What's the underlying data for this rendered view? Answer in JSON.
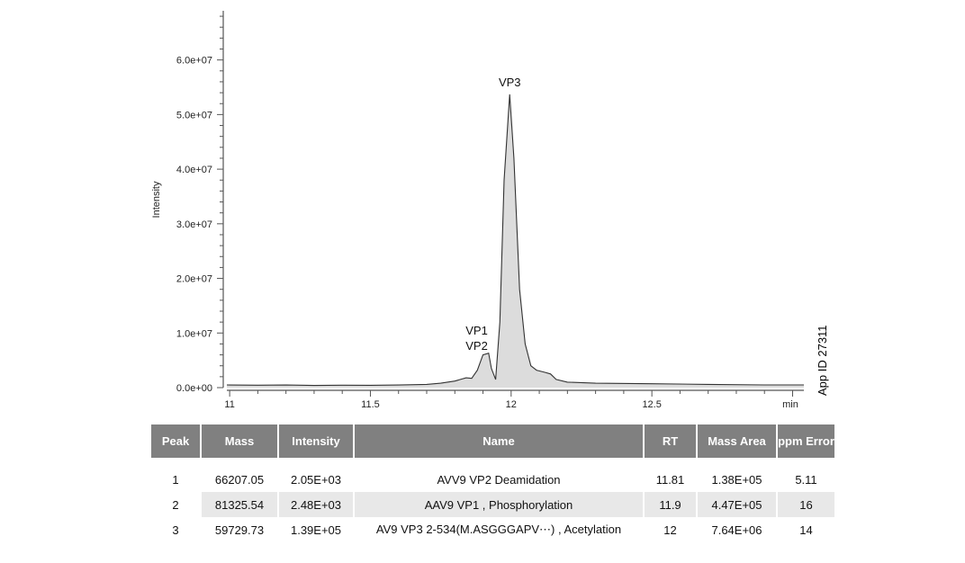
{
  "chart_data": {
    "type": "area",
    "xlabel": "min",
    "ylabel": "Intensity",
    "xlim": [
      10.99,
      13.04
    ],
    "ylim": [
      0,
      69000000
    ],
    "x_ticks": [
      {
        "v": 11,
        "label": "11"
      },
      {
        "v": 11.5,
        "label": "11.5"
      },
      {
        "v": 12,
        "label": "12"
      },
      {
        "v": 12.5,
        "label": "12.5"
      }
    ],
    "y_ticks": [
      {
        "v": 0,
        "label": "0.0e+00"
      },
      {
        "v": 10000000,
        "label": "1.0e+07"
      },
      {
        "v": 20000000,
        "label": "2.0e+07"
      },
      {
        "v": 30000000,
        "label": "3.0e+07"
      },
      {
        "v": 40000000,
        "label": "4.0e+07"
      },
      {
        "v": 50000000,
        "label": "5.0e+07"
      },
      {
        "v": 60000000,
        "label": "6.0e+07"
      }
    ],
    "x": [
      10.99,
      11.1,
      11.2,
      11.3,
      11.4,
      11.5,
      11.6,
      11.7,
      11.75,
      11.8,
      11.82,
      11.84,
      11.86,
      11.88,
      11.9,
      11.92,
      11.93,
      11.945,
      11.96,
      11.975,
      11.995,
      12.01,
      12.03,
      12.05,
      12.07,
      12.09,
      12.12,
      12.14,
      12.16,
      12.2,
      12.3,
      12.5,
      12.7,
      12.9,
      13.04
    ],
    "y": [
      500000,
      450000,
      480000,
      400000,
      450000,
      420000,
      480000,
      600000,
      800000,
      1200000,
      1500000,
      1800000,
      1700000,
      3200000,
      6000000,
      6300000,
      3500000,
      1500000,
      12000000,
      38000000,
      53700000,
      42000000,
      18000000,
      8000000,
      4000000,
      3200000,
      2800000,
      2500000,
      1500000,
      1000000,
      800000,
      700000,
      600000,
      500000,
      500000
    ],
    "annotations": [
      {
        "text": "VP3",
        "x": 11.995,
        "y": 53700000
      },
      {
        "text": "VP1",
        "x": 11.9,
        "y": 6300000
      },
      {
        "text": "VP2",
        "x": 11.9,
        "y": 6300000
      }
    ]
  },
  "side_label": "App ID 27311",
  "table": {
    "headers": [
      "Peak",
      "Mass",
      "Intensity",
      "Name",
      "RT",
      "Mass Area",
      "ppm Error"
    ],
    "rows": [
      [
        "1",
        "66207.05",
        "2.05E+03",
        "AVV9 VP2 Deamidation",
        "11.81",
        "1.38E+05",
        "5.11"
      ],
      [
        "2",
        "81325.54",
        "2.48E+03",
        "AAV9 VP1 , Phosphorylation",
        "11.9",
        "4.47E+05",
        "16"
      ],
      [
        "3",
        "59729.73",
        "1.39E+05",
        "AV9 VP3 2-534(M.ASGGGAPV⋯) , Acetylation",
        "12",
        "7.64E+06",
        "14"
      ]
    ]
  }
}
